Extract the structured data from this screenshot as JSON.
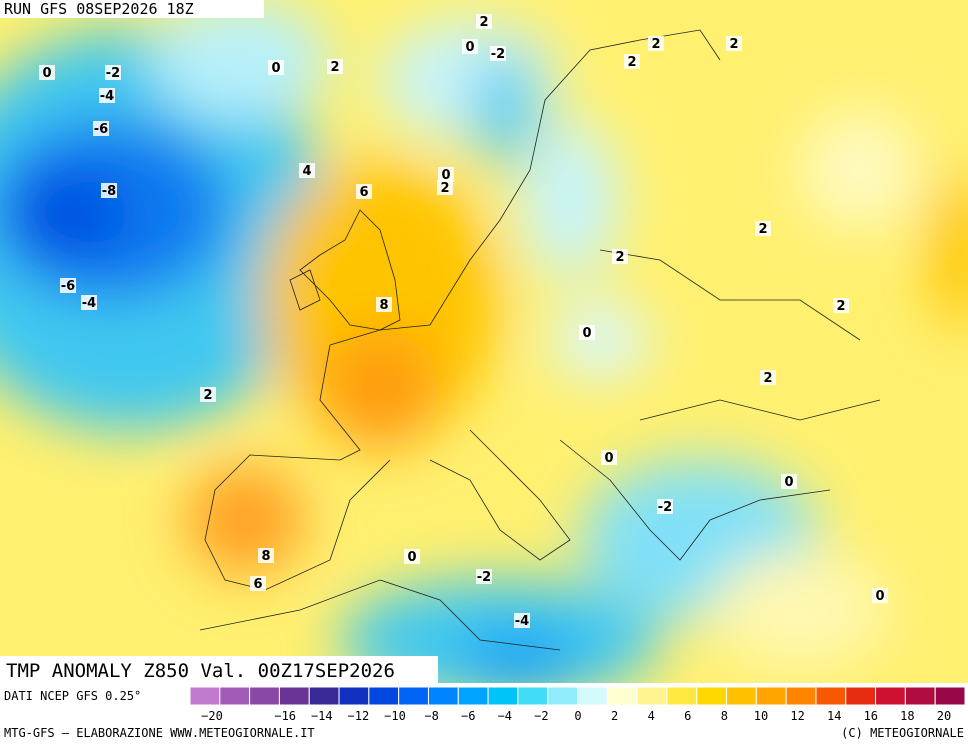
{
  "header": {
    "run": "RUN GFS 08SEP2026 18Z"
  },
  "map": {
    "title": "TMP ANOMALY Z850 Val. 00Z17SEP2026",
    "contour_labels": [
      0,
      -2,
      -4,
      -6,
      -8,
      -6,
      -4,
      0,
      2,
      2,
      0,
      -2,
      2,
      2,
      2,
      4,
      6,
      0,
      2,
      2,
      2,
      8,
      0,
      2,
      2,
      2,
      0,
      0,
      -2,
      8,
      6,
      0,
      -2,
      -4,
      0
    ]
  },
  "legend": {
    "source": "DATI NCEP GFS 0.25°",
    "colors": [
      "#c07ad0",
      "#a05cb8",
      "#8a48a6",
      "#6a3496",
      "#3a2a98",
      "#1030c0",
      "#0048e0",
      "#0064f4",
      "#0084ff",
      "#00a4ff",
      "#00c4f8",
      "#40dcf8",
      "#90ecfc",
      "#d4fafc",
      "#ffffd0",
      "#fff490",
      "#ffe840",
      "#ffd800",
      "#ffc000",
      "#ffa400",
      "#ff8400",
      "#f85800",
      "#e82c10",
      "#d01030",
      "#b00c40",
      "#980848"
    ],
    "ticks": [
      {
        "value": -20,
        "label": "−20"
      },
      {
        "value": -16,
        "label": "−16"
      },
      {
        "value": -14,
        "label": "−14"
      },
      {
        "value": -12,
        "label": "−12"
      },
      {
        "value": -10,
        "label": "−10"
      },
      {
        "value": -8,
        "label": "−8"
      },
      {
        "value": -6,
        "label": "−6"
      },
      {
        "value": -4,
        "label": "−4"
      },
      {
        "value": -2,
        "label": "−2"
      },
      0,
      2,
      4,
      6,
      8,
      10,
      12,
      14,
      16,
      18,
      20
    ]
  },
  "footer": {
    "left": "MTG-GFS — ELABORAZIONE WWW.METEOGIORNALE.IT",
    "right": "(C) METEOGIORNALE"
  }
}
